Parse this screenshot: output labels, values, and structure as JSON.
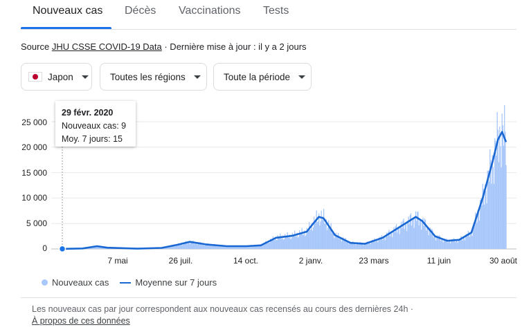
{
  "tabs": [
    "Nouveaux cas",
    "Décès",
    "Vaccinations",
    "Tests"
  ],
  "source": {
    "prefix": "Source ",
    "link": "JHU CSSE COVID-19 Data",
    "suffix": " · Dernière mise à jour : il y a 2 jours"
  },
  "filters": {
    "country": "Japon",
    "region": "Toutes les régions",
    "period": "Toute la période"
  },
  "tooltip": {
    "date": "29 févr. 2020",
    "cases": "Nouveaux cas: 9",
    "avg": "Moy. 7 jours: 15"
  },
  "legend": {
    "bars": "Nouveaux cas",
    "line": "Moyenne sur 7 jours"
  },
  "footer": {
    "text": "Les nouveaux cas par jour correspondent aux nouveaux cas recensés au cours des dernières 24h  ·",
    "link": "À propos de ces données"
  },
  "colors": {
    "accent": "#1a73e8",
    "bars": "#a8c7fa",
    "line": "#1967d2"
  },
  "chart_data": {
    "type": "bar",
    "ytick_labels": [
      "25 000",
      "20 000",
      "15 000",
      "10 000",
      "5 000",
      "0"
    ],
    "yticks": [
      25000,
      20000,
      15000,
      10000,
      5000,
      0
    ],
    "xtick_labels": [
      "7 mai",
      "26 juil.",
      "14 oct.",
      "2 janv.",
      "23 mars",
      "11 juin",
      "30 août"
    ],
    "x_range": [
      "2020-02-29",
      "2021-09-01"
    ],
    "ylim": [
      0,
      25000
    ],
    "grid": true,
    "series": [
      {
        "name": "Nouveaux cas",
        "type": "bar"
      },
      {
        "name": "Moyenne sur 7 jours",
        "type": "line",
        "points": [
          [
            "2020-02-29",
            15
          ],
          [
            "2020-03-25",
            100
          ],
          [
            "2020-04-12",
            550
          ],
          [
            "2020-04-25",
            250
          ],
          [
            "2020-06-01",
            50
          ],
          [
            "2020-07-01",
            200
          ],
          [
            "2020-07-20",
            800
          ],
          [
            "2020-08-05",
            1400
          ],
          [
            "2020-08-25",
            900
          ],
          [
            "2020-09-20",
            550
          ],
          [
            "2020-10-14",
            550
          ],
          [
            "2020-11-01",
            700
          ],
          [
            "2020-11-20",
            2200
          ],
          [
            "2020-12-10",
            2600
          ],
          [
            "2020-12-28",
            3400
          ],
          [
            "2021-01-05",
            5000
          ],
          [
            "2021-01-12",
            6300
          ],
          [
            "2021-01-18",
            6000
          ],
          [
            "2021-02-01",
            2700
          ],
          [
            "2021-02-20",
            1200
          ],
          [
            "2021-03-10",
            1000
          ],
          [
            "2021-04-01",
            2200
          ],
          [
            "2021-04-25",
            4600
          ],
          [
            "2021-05-12",
            6300
          ],
          [
            "2021-05-20",
            5500
          ],
          [
            "2021-06-05",
            2500
          ],
          [
            "2021-06-20",
            1600
          ],
          [
            "2021-07-05",
            1800
          ],
          [
            "2021-07-20",
            3200
          ],
          [
            "2021-08-03",
            10000
          ],
          [
            "2021-08-15",
            17000
          ],
          [
            "2021-08-22",
            21500
          ],
          [
            "2021-08-27",
            23000
          ],
          [
            "2021-09-01",
            21000
          ]
        ]
      }
    ]
  }
}
